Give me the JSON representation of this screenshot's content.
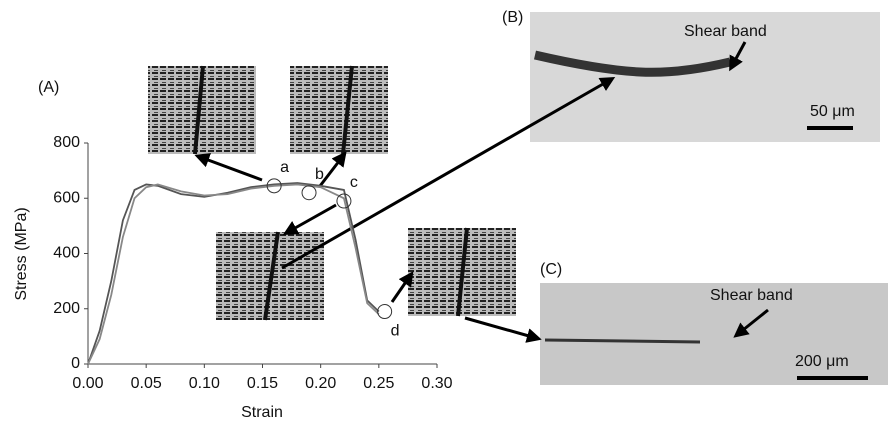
{
  "chart_data": {
    "type": "line",
    "xlabel": "Strain",
    "ylabel": "Stress (MPa)",
    "x": [
      0,
      0.01,
      0.02,
      0.03,
      0.04,
      0.05,
      0.06,
      0.08,
      0.1,
      0.12,
      0.14,
      0.16,
      0.18,
      0.2,
      0.22,
      0.23,
      0.24,
      0.25
    ],
    "series": [
      {
        "color": "#555555",
        "values": [
          0,
          120,
          300,
          520,
          630,
          650,
          645,
          615,
          605,
          620,
          640,
          650,
          655,
          645,
          630,
          450,
          230,
          190
        ]
      },
      {
        "color": "#888888",
        "values": [
          0,
          90,
          250,
          460,
          600,
          640,
          650,
          625,
          610,
          615,
          635,
          645,
          650,
          640,
          600,
          420,
          220,
          180
        ]
      }
    ],
    "xlim": [
      0,
      0.3
    ],
    "xticks": [
      {
        "value": 0,
        "label": "0.00"
      },
      {
        "value": 0.05,
        "label": "0.05"
      },
      {
        "value": 0.1,
        "label": "0.10"
      },
      {
        "value": 0.15,
        "label": "0.15"
      },
      {
        "value": 0.2,
        "label": "0.20"
      },
      {
        "value": 0.25,
        "label": "0.25"
      },
      {
        "value": 0.3,
        "label": "0.30"
      }
    ],
    "ylim": [
      0,
      800
    ],
    "yticks": [
      0,
      200,
      400,
      600,
      800
    ],
    "grid": false,
    "annotations": [
      {
        "label": "a",
        "x": 0.16,
        "y": 645
      },
      {
        "label": "b",
        "x": 0.19,
        "y": 620
      },
      {
        "label": "c",
        "x": 0.22,
        "y": 590
      },
      {
        "label": "d",
        "x": 0.255,
        "y": 190
      }
    ]
  },
  "figure": {
    "panel_labels": [
      "(A)",
      "(B)",
      "(C)"
    ],
    "insets": [
      {
        "label": "Shear band",
        "scale": "50 μm"
      },
      {
        "label": "Shear band",
        "scale": "200 μm"
      }
    ]
  }
}
